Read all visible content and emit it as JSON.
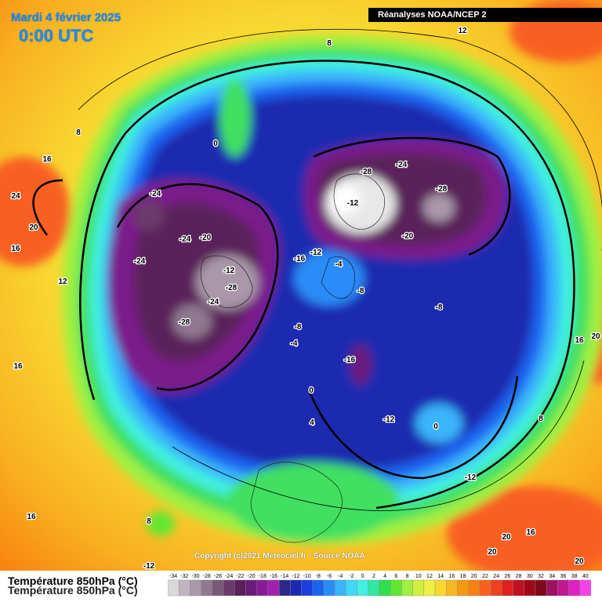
{
  "header": {
    "date": "Mardi 4 février 2025",
    "time": "0:00 UTC",
    "source": "Réanalyses NOAA/NCEP 2"
  },
  "footer": {
    "copyright": "Copyright (c)2021 Meteociel.fr - Source NOAA",
    "caption": "Température 850hPa (°C)"
  },
  "legend": {
    "values": [
      "-34",
      "-32",
      "-30",
      "-28",
      "-26",
      "-24",
      "-22",
      "-20",
      "-18",
      "-16",
      "-14",
      "-12",
      "-10",
      "-8",
      "-6",
      "-4",
      "-2",
      "0",
      "2",
      "4",
      "6",
      "8",
      "10",
      "12",
      "14",
      "16",
      "18",
      "20",
      "22",
      "24",
      "26",
      "28",
      "30",
      "32",
      "34",
      "36",
      "38",
      "40"
    ],
    "colors": [
      "#d8d8d8",
      "#c0b4c0",
      "#a898a8",
      "#907890",
      "#7a587a",
      "#6a3a6a",
      "#5a205a",
      "#6a1a7a",
      "#8a1a9a",
      "#a020b0",
      "#2a2a8a",
      "#1a2ab0",
      "#1a3ee0",
      "#1a64f0",
      "#2a8cf8",
      "#3ab4fa",
      "#40d8f8",
      "#40f0e0",
      "#30e8a0",
      "#30e050",
      "#60e830",
      "#a0f040",
      "#d0f040",
      "#f0f040",
      "#f8d830",
      "#f8b820",
      "#f89a10",
      "#f88010",
      "#f86020",
      "#f04020",
      "#e02020",
      "#c01020",
      "#a00818",
      "#800818",
      "#a01060",
      "#c01890",
      "#e020c0",
      "#f840e8"
    ]
  },
  "map_labels": [
    {
      "text": "8"
    },
    {
      "text": "12"
    },
    {
      "text": "8"
    },
    {
      "text": "16"
    },
    {
      "text": "0"
    },
    {
      "text": "24"
    },
    {
      "text": "20"
    },
    {
      "text": "16"
    },
    {
      "text": "-24"
    },
    {
      "text": "-28"
    },
    {
      "text": "-24"
    },
    {
      "text": "-28"
    },
    {
      "text": "-12"
    },
    {
      "text": "-24"
    },
    {
      "text": "-20"
    },
    {
      "text": "-20"
    },
    {
      "text": "-24"
    },
    {
      "text": "-16"
    },
    {
      "text": "-12"
    },
    {
      "text": "-4"
    },
    {
      "text": "-12"
    },
    {
      "text": "-28"
    },
    {
      "text": "-24"
    },
    {
      "text": "-28"
    },
    {
      "text": "-8"
    },
    {
      "text": "-8"
    },
    {
      "text": "-8"
    },
    {
      "text": "-4"
    },
    {
      "text": "-16"
    },
    {
      "text": "0"
    },
    {
      "text": "4"
    },
    {
      "text": "-12"
    },
    {
      "text": "0"
    },
    {
      "text": "8"
    },
    {
      "text": "-12"
    },
    {
      "text": "16"
    },
    {
      "text": "20"
    },
    {
      "text": "16"
    },
    {
      "text": "8"
    },
    {
      "text": "16"
    },
    {
      "text": "20"
    },
    {
      "text": "16"
    },
    {
      "text": "20"
    },
    {
      "text": "20"
    },
    {
      "text": "-12"
    },
    {
      "text": "12"
    }
  ]
}
